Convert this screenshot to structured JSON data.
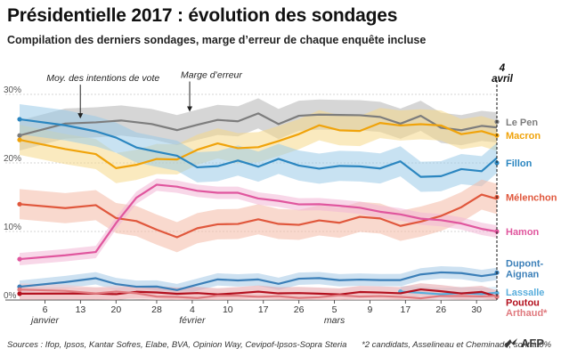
{
  "header": {
    "title": "Présidentielle 2017 : évolution des sondages",
    "subtitle": "Compilation des derniers sondages, marge d’erreur de chaque enquête incluse"
  },
  "footer": {
    "sources": "Sources : Ifop, Ipsos, Kantar Sofres, Elabe, BVA, Opinion Way, Cevipof-Ipsos-Sopra Steria",
    "note": "*2 candidats, Asselineau et Cheminade, sont à 0%",
    "logo": "AFP"
  },
  "chart_data": {
    "type": "area",
    "title": "Présidentielle 2017 : évolution des sondages",
    "xlabel": "",
    "ylabel": "",
    "ylim": [
      0,
      30
    ],
    "y_ticks": [
      0,
      10,
      20,
      30
    ],
    "y_tick_labels": [
      "0%",
      "10%",
      "20%",
      "30%"
    ],
    "x_range": [
      1,
      95
    ],
    "x_ticks": [
      {
        "x": 6,
        "label": "6"
      },
      {
        "x": 13,
        "label": "13"
      },
      {
        "x": 20,
        "label": "20"
      },
      {
        "x": 28,
        "label": "28"
      },
      {
        "x": 35,
        "label": "4"
      },
      {
        "x": 42,
        "label": "10"
      },
      {
        "x": 49,
        "label": "17"
      },
      {
        "x": 56,
        "label": "26"
      },
      {
        "x": 63,
        "label": "5"
      },
      {
        "x": 70,
        "label": "9"
      },
      {
        "x": 77,
        "label": "17"
      },
      {
        "x": 84,
        "label": "26"
      },
      {
        "x": 91,
        "label": "30"
      }
    ],
    "x_month_labels": [
      {
        "x": 6,
        "label": "janvier"
      },
      {
        "x": 35,
        "label": "février"
      },
      {
        "x": 63,
        "label": "mars"
      }
    ],
    "end_marker": {
      "x": 95,
      "date_label": "4",
      "month_label": "avril"
    },
    "annotations": [
      {
        "text": "Moy. des intentions de vote",
        "x": 7,
        "y": 27
      },
      {
        "text": "Marge d’erreur",
        "x": 34.5,
        "y": 28.5
      }
    ],
    "series": [
      {
        "name": "Le Pen",
        "label": "Le Pen",
        "color": "#7d7d7d",
        "band_color": "#b4b4b4",
        "final": 26.0,
        "x": [
          1,
          10,
          16,
          21,
          27,
          32,
          36,
          40,
          44,
          48,
          52,
          56,
          60,
          64,
          68,
          72,
          76,
          80,
          84,
          88,
          92,
          95
        ],
        "y": [
          24,
          25,
          26,
          26,
          26,
          25.5,
          25,
          26,
          26,
          27,
          26.5,
          27,
          26.5,
          27,
          26.5,
          27,
          26.5,
          26.5,
          25,
          24.5,
          25,
          26
        ]
      },
      {
        "name": "Macron",
        "label": "Macron",
        "color": "#f0a30a",
        "band_color": "#f5d88a",
        "final": 24.0,
        "x": [
          1,
          10,
          16,
          20,
          24,
          28,
          32,
          36,
          40,
          44,
          48,
          52,
          56,
          60,
          64,
          68,
          72,
          76,
          80,
          84,
          88,
          92,
          95
        ],
        "y": [
          23,
          22,
          21,
          20,
          20,
          20,
          20.5,
          21.5,
          23,
          23,
          22,
          23,
          24,
          25,
          25.5,
          25,
          25.5,
          25.5,
          25,
          25.5,
          25,
          24.5,
          24
        ]
      },
      {
        "name": "Fillon",
        "label": "Fillon",
        "color": "#2b86c0",
        "band_color": "#9bcbe8",
        "final": 20.0,
        "x": [
          1,
          10,
          16,
          20,
          24,
          28,
          32,
          36,
          40,
          44,
          48,
          52,
          56,
          60,
          64,
          68,
          72,
          76,
          80,
          84,
          88,
          92,
          95
        ],
        "y": [
          26,
          25.5,
          25.5,
          23.5,
          22,
          21.5,
          20.5,
          20,
          20,
          20,
          19.5,
          20,
          19.5,
          20,
          19.5,
          19.5,
          19,
          19.5,
          18.5,
          18.5,
          19,
          19,
          20
        ]
      },
      {
        "name": "Mélenchon",
        "label": "Mélenchon",
        "color": "#e0573c",
        "band_color": "#f4b9a6",
        "final": 15.0,
        "x": [
          1,
          10,
          16,
          20,
          24,
          28,
          32,
          36,
          40,
          44,
          48,
          52,
          56,
          60,
          64,
          68,
          72,
          76,
          80,
          84,
          88,
          92,
          95
        ],
        "y": [
          14.5,
          14,
          13.5,
          12,
          11,
          10,
          10,
          10.5,
          11,
          11,
          11,
          11.5,
          11.5,
          11.5,
          11.5,
          11.5,
          11.5,
          11.5,
          11.5,
          12.5,
          13.5,
          14.5,
          15
        ]
      },
      {
        "name": "Hamon",
        "label": "Hamon",
        "color": "#e0569e",
        "band_color": "#f3b6d6",
        "final": 10.0,
        "x": [
          1,
          10,
          16,
          20,
          24,
          28,
          32,
          36,
          40,
          44,
          48,
          52,
          56,
          60,
          64,
          68,
          72,
          76,
          80,
          84,
          88,
          92,
          95
        ],
        "y": [
          6,
          6.5,
          7,
          11,
          15,
          17,
          16.5,
          16,
          15.5,
          15.5,
          15,
          14.5,
          14,
          14,
          13.5,
          13.5,
          13,
          12.5,
          12,
          11.5,
          11,
          10.5,
          10
        ]
      },
      {
        "name": "Dupont-Aignan",
        "label": "Dupont-\nAignan",
        "color": "#3b7fb8",
        "band_color": "#a4c9e6",
        "final": 4.0,
        "x": [
          1,
          10,
          16,
          20,
          24,
          28,
          32,
          36,
          40,
          44,
          48,
          52,
          56,
          60,
          64,
          68,
          72,
          76,
          80,
          84,
          88,
          92,
          95
        ],
        "y": [
          2,
          2.5,
          3,
          2.5,
          2,
          2,
          1.5,
          2,
          3,
          3,
          3,
          2.5,
          3,
          3,
          3,
          3,
          3,
          3,
          3.5,
          4,
          4,
          3.5,
          4
        ]
      },
      {
        "name": "Lassalle",
        "label": "Lassalle",
        "color": "#5aaedc",
        "band_color": "#c7e4f4",
        "final": 1.0,
        "x": [
          76,
          80,
          84,
          88,
          92,
          95
        ],
        "y": [
          1,
          1,
          1,
          1,
          1,
          1
        ]
      },
      {
        "name": "Poutou",
        "label": "Poutou",
        "color": "#b3101e",
        "band_color": "#e6a3a8",
        "final": 0.5,
        "x": [
          1,
          10,
          16,
          20,
          24,
          28,
          32,
          36,
          40,
          44,
          48,
          52,
          56,
          60,
          64,
          68,
          72,
          76,
          80,
          84,
          88,
          92,
          95
        ],
        "y": [
          1,
          1,
          1,
          1,
          1,
          1,
          1,
          1,
          1,
          1,
          1,
          1,
          1,
          1,
          1,
          1,
          1,
          1,
          1.5,
          1.5,
          1,
          1,
          0.5
        ]
      },
      {
        "name": "Arthaud",
        "label": "Arthaud*",
        "color": "#e07a7f",
        "band_color": "#f4c9cb",
        "final": 0.5,
        "x": [
          1,
          10,
          16,
          20,
          24,
          28,
          32,
          36,
          40,
          44,
          48,
          52,
          56,
          60,
          64,
          68,
          72,
          76,
          80,
          84,
          88,
          92,
          95
        ],
        "y": [
          1.5,
          1.5,
          1,
          1,
          1,
          0.5,
          0.5,
          0.5,
          0.5,
          0.5,
          0.5,
          0.5,
          0.5,
          0.5,
          0.5,
          0.5,
          0.5,
          0.5,
          0.5,
          0.5,
          0.5,
          0.5,
          0.5
        ]
      }
    ]
  }
}
